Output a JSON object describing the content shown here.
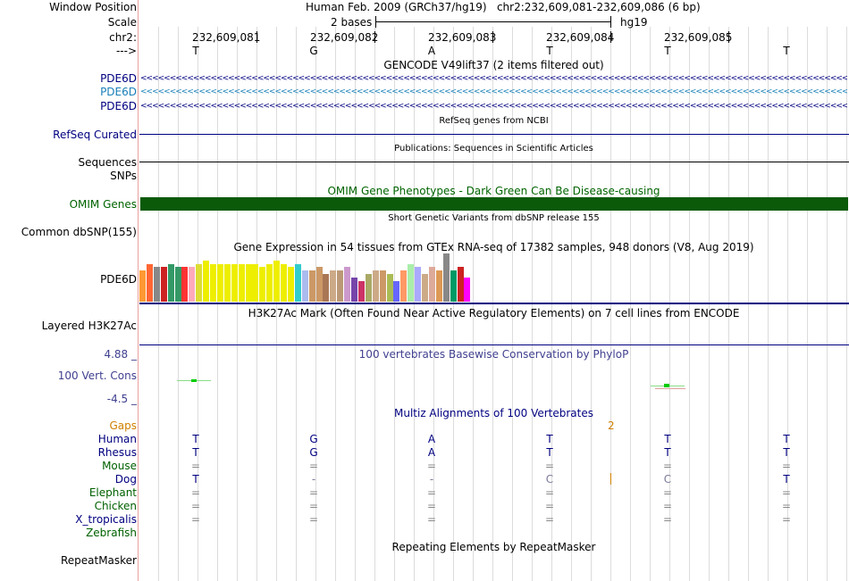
{
  "colors": {
    "navy": "#000080",
    "gencode_light": "#1a80b8",
    "omim_green": "#0a5a0a",
    "omim_label": "#006400",
    "phylop_blue": "#404090",
    "gaps_orange": "#d08000",
    "dark_green_label": "#006000"
  },
  "header": {
    "window_position_label": "Window Position",
    "window_position_value": "Human Feb. 2009 (GRCh37/hg19)   chr2:232,609,081-232,609,086 (6 bp)",
    "scale_label": "Scale",
    "scale_text": "2 bases",
    "scale_assembly": "hg19",
    "chrom_label": "chr2:",
    "strand_label": "--->",
    "coords": [
      "232,609,081",
      "232,609,082",
      "232,609,083",
      "232,609,084",
      "232,609,085"
    ],
    "bases": [
      "T",
      "G",
      "A",
      "T",
      "T",
      "T"
    ]
  },
  "tracks": {
    "gencode": {
      "title": "GENCODE V49lift37 (2 items filtered out)",
      "rows": [
        {
          "label": "PDE6D",
          "color": "#000080"
        },
        {
          "label": "PDE6D",
          "color": "#1a80b8"
        },
        {
          "label": "PDE6D",
          "color": "#000080"
        }
      ]
    },
    "refseq": {
      "title": "RefSeq genes from NCBI",
      "label": "RefSeq Curated"
    },
    "publications": {
      "title": "Publications: Sequences in Scientific Articles",
      "label": "Sequences"
    },
    "snps_label": "SNPs",
    "omim": {
      "title": "OMIM Gene Phenotypes - Dark Green Can Be Disease-causing",
      "label": "OMIM Genes"
    },
    "dbsnp": {
      "title": "Short Genetic Variants from dbSNP release 155",
      "label": "Common dbSNP(155)"
    },
    "gtex": {
      "title": "Gene Expression in 54 tissues from GTEx RNA-seq of 17382 samples, 948 donors (V8, Aug 2019)",
      "label": "PDE6D",
      "tissue_colors": [
        "#ff9933",
        "#ff6633",
        "#888888",
        "#cc2222",
        "#339966",
        "#339966",
        "#ff3333",
        "#ffaabb",
        "#dddd33",
        "#eeee00",
        "#eeee00",
        "#eeee00",
        "#eeee00",
        "#eeee00",
        "#eeee00",
        "#eeee00",
        "#eeee00",
        "#eeee00",
        "#eeee00",
        "#eeee00",
        "#eeee00",
        "#eeee00",
        "#33cccc",
        "#aabbee",
        "#cc9966",
        "#cc9966",
        "#aa7755",
        "#ccaa88",
        "#bb9977",
        "#cc99cc",
        "#7744aa",
        "#cc3366",
        "#aaaa66",
        "#ccaa88",
        "#cc9966",
        "#aabb55",
        "#6666ff",
        "#ff9966",
        "#aaeeaa",
        "#aaaaff",
        "#ccaa88",
        "#ddaa99",
        "#dd9955",
        "#888888",
        "#009966",
        "#cc2222",
        "#ff00ff"
      ],
      "values": [
        9,
        11,
        10,
        10,
        11,
        10,
        10,
        10,
        11,
        12,
        11,
        11,
        11,
        11,
        11,
        11,
        11,
        10,
        11,
        12,
        11,
        10,
        11,
        9,
        9,
        10,
        8,
        9,
        9,
        10,
        7,
        6,
        8,
        9,
        9,
        8,
        6,
        9,
        11,
        10,
        8,
        10,
        9,
        14,
        9,
        10,
        7
      ]
    },
    "h3k27ac": {
      "title": "H3K27Ac Mark (Often Found Near Active Regulatory Elements) on 7 cell lines from ENCODE",
      "label": "Layered H3K27Ac"
    },
    "phylop": {
      "title": "100 vertebrates Basewise Conservation by PhyloP",
      "label": "100 Vert. Cons",
      "max_label": "4.88 _",
      "min_label": "-4.5 _"
    },
    "multiz": {
      "title": "Multiz Alignments of 100 Vertebrates",
      "gaps_label": "Gaps",
      "gap_count": "2",
      "species": [
        {
          "name": "Human",
          "color": "#000080",
          "bases": [
            "T",
            "G",
            "A",
            "T",
            "T",
            "T"
          ]
        },
        {
          "name": "Rhesus",
          "color": "#000080",
          "bases": [
            "T",
            "G",
            "A",
            "T",
            "T",
            "T"
          ]
        },
        {
          "name": "Mouse",
          "color": "#006000",
          "bases": [
            "=",
            "=",
            "=",
            "=",
            "=",
            "="
          ]
        },
        {
          "name": "Dog",
          "color": "#000080",
          "bases": [
            "T",
            "-",
            "-",
            "C",
            "C",
            "T"
          ]
        },
        {
          "name": "Elephant",
          "color": "#006000",
          "bases": [
            "=",
            "=",
            "=",
            "=",
            "=",
            "="
          ]
        },
        {
          "name": "Chicken",
          "color": "#006000",
          "bases": [
            "=",
            "=",
            "=",
            "=",
            "=",
            "="
          ]
        },
        {
          "name": "X_tropicalis",
          "color": "#000080",
          "bases": [
            "=",
            "=",
            "=",
            "=",
            "=",
            "="
          ]
        },
        {
          "name": "Zebrafish",
          "color": "#006000",
          "bases": [
            "",
            "",
            "",
            "",
            "",
            ""
          ]
        }
      ]
    },
    "repeatmasker": {
      "title": "Repeating Elements by RepeatMasker",
      "label": "RepeatMasker"
    }
  }
}
